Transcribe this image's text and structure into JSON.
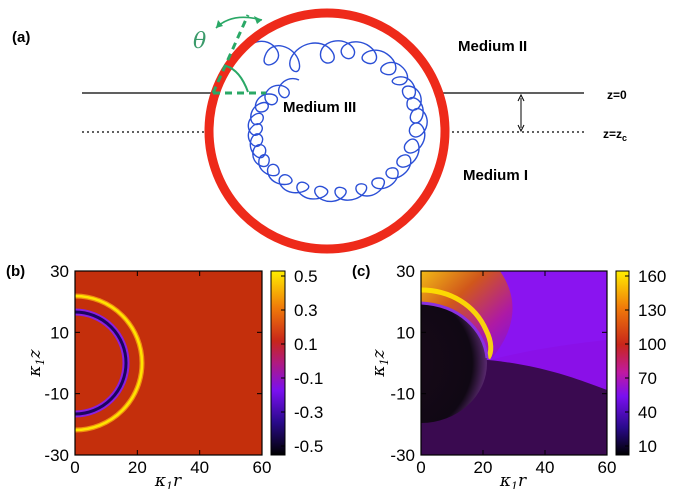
{
  "panel_a": {
    "label": "(a)",
    "theta": "θ",
    "medium_ii": "Medium II",
    "medium_iii": "Medium III",
    "medium_i": "Medium I",
    "z0": "z=0",
    "zc_prefix": "z=z",
    "zc_sub": "c",
    "colors": {
      "ring": "#ee2a1a",
      "chain": "#2b4fd6",
      "angle": "#2aa866",
      "theta": "#3a9a6a"
    }
  },
  "panel_b": {
    "label": "(b)",
    "ylabel_main": "κ",
    "ylabel_sub": "1",
    "ylabel_var": "z",
    "xlabel_main": "κ",
    "xlabel_sub": "1",
    "xlabel_var": "r",
    "xticks": [
      "0",
      "20",
      "40",
      "60"
    ],
    "yticks": [
      "30",
      "10",
      "-10",
      "-30"
    ],
    "colorbar_ticks": [
      "0.5",
      "0.3",
      "0.1",
      "-0.1",
      "-0.3",
      "-0.5"
    ]
  },
  "panel_c": {
    "label": "(c)",
    "ylabel_main": "κ",
    "ylabel_sub": "1",
    "ylabel_var": "z",
    "xlabel_main": "κ",
    "xlabel_sub": "1",
    "xlabel_var": "r",
    "xticks": [
      "0",
      "20",
      "40",
      "60"
    ],
    "yticks": [
      "30",
      "10",
      "-10",
      "-30"
    ],
    "colorbar_ticks": [
      "160",
      "130",
      "100",
      "70",
      "40",
      "10"
    ]
  }
}
